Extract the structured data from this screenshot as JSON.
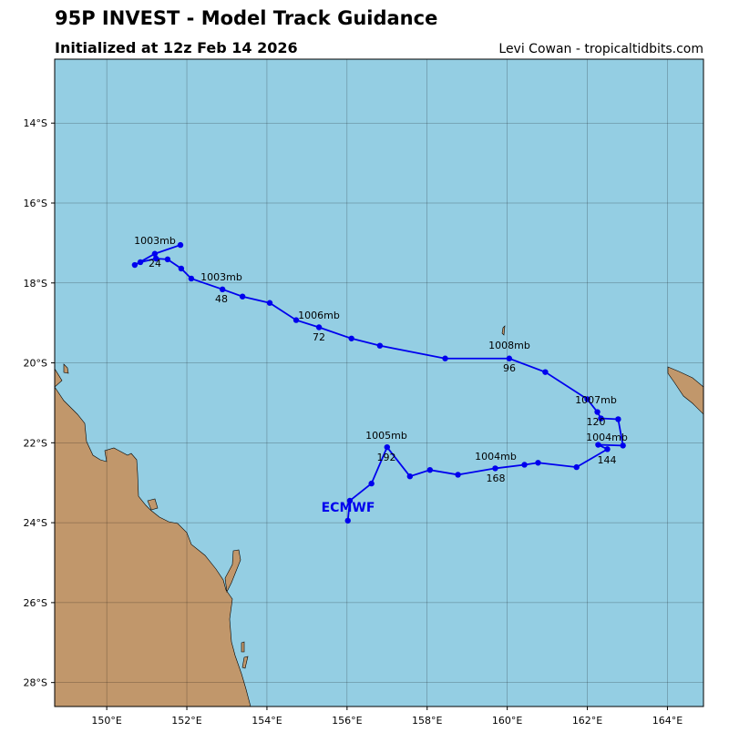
{
  "chart_data": {
    "type": "map",
    "title": "95P INVEST - Model Track Guidance",
    "subtitle": "Initialized at 12z Feb 14 2026",
    "credit": "Levi Cowan - tropicaltidbits.com",
    "xlim": [
      148.7,
      164.9
    ],
    "ylim": [
      -28.6,
      -12.4
    ],
    "xticks": [
      {
        "value": 150,
        "label": "150°E"
      },
      {
        "value": 152,
        "label": "152°E"
      },
      {
        "value": 154,
        "label": "154°E"
      },
      {
        "value": 156,
        "label": "156°E"
      },
      {
        "value": 158,
        "label": "158°E"
      },
      {
        "value": 160,
        "label": "160°E"
      },
      {
        "value": 162,
        "label": "162°E"
      },
      {
        "value": 164,
        "label": "164°E"
      }
    ],
    "yticks": [
      {
        "value": -14,
        "label": "14°S"
      },
      {
        "value": -16,
        "label": "16°S"
      },
      {
        "value": -18,
        "label": "18°S"
      },
      {
        "value": -20,
        "label": "20°S"
      },
      {
        "value": -22,
        "label": "22°S"
      },
      {
        "value": -24,
        "label": "24°S"
      },
      {
        "value": -26,
        "label": "26°S"
      },
      {
        "value": -28,
        "label": "28°S"
      }
    ],
    "grid": true,
    "track": {
      "name": "ECMWF",
      "color": "#0000ee",
      "lon": [
        151.84,
        151.2,
        150.7,
        150.84,
        151.23,
        151.52,
        151.86,
        152.11,
        152.89,
        153.39,
        154.07,
        154.73,
        155.3,
        156.11,
        156.82,
        158.45,
        160.05,
        160.95,
        162.0,
        162.25,
        162.34,
        162.77,
        162.89,
        162.27,
        162.5,
        161.73,
        160.77,
        160.43,
        159.7,
        158.77,
        158.07,
        157.57,
        157.0,
        156.61,
        156.07,
        156.02
      ],
      "lat": [
        -17.05,
        -17.27,
        -17.55,
        -17.48,
        -17.39,
        -17.41,
        -17.64,
        -17.89,
        -18.16,
        -18.34,
        -18.5,
        -18.93,
        -19.11,
        -19.39,
        -19.57,
        -19.89,
        -19.89,
        -20.23,
        -20.91,
        -21.23,
        -21.39,
        -21.41,
        -22.07,
        -22.05,
        -22.16,
        -22.61,
        -22.5,
        -22.55,
        -22.64,
        -22.8,
        -22.68,
        -22.84,
        -22.11,
        -23.02,
        -23.45,
        -23.95
      ]
    },
    "pressure_labels": [
      "1003mb",
      "1003mb",
      "1006mb",
      "1008mb",
      "1007mb",
      "1004mb",
      "1004mb",
      "1005mb"
    ],
    "hour_labels": [
      24,
      48,
      72,
      96,
      120,
      144,
      168,
      192
    ]
  }
}
